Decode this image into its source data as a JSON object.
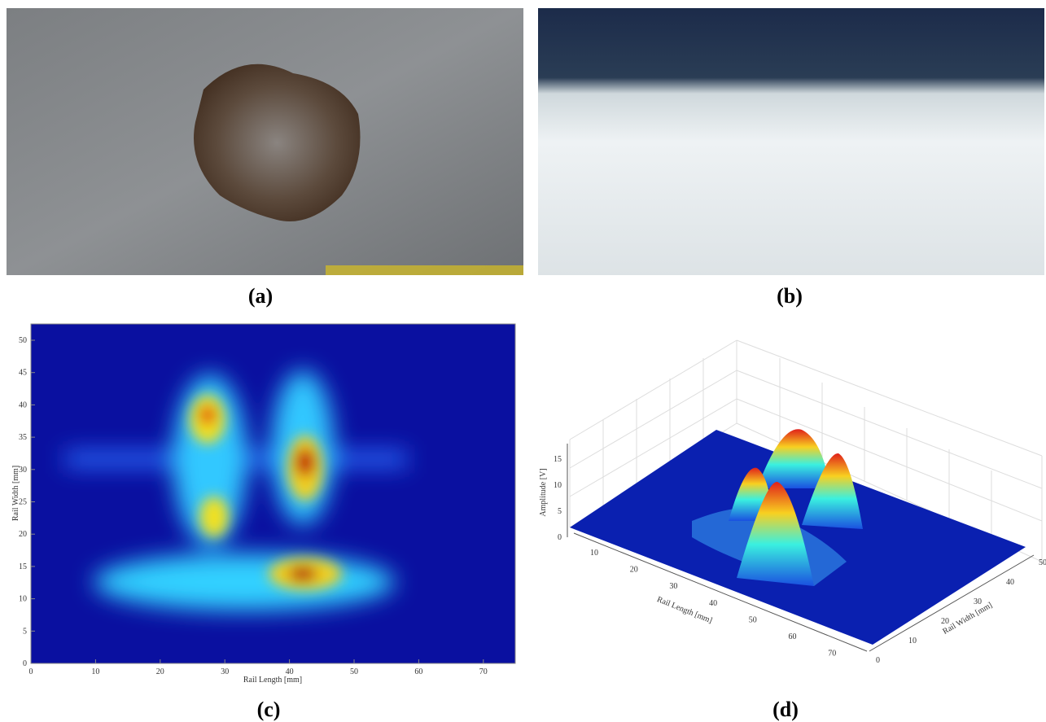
{
  "panels": [
    {
      "label": "(a)"
    },
    {
      "label": "(b)"
    },
    {
      "label": "(c)",
      "x_label": "Rail Length [mm]",
      "y_label": "Rail Width [mm]",
      "xticks": [
        0,
        10,
        20,
        30,
        40,
        50,
        60,
        70
      ],
      "yticks": [
        0,
        5,
        10,
        15,
        20,
        25,
        30,
        35,
        40,
        45,
        50
      ]
    },
    {
      "label": "(d)",
      "x_label": "Rail Length [mm]",
      "y_label": "Rail Width [mm]",
      "z_label": "Amplitude [V]",
      "xticks": [
        10,
        20,
        30,
        40,
        50,
        60,
        70
      ],
      "yticks": [
        0,
        10,
        20,
        30,
        40,
        50
      ],
      "zticks": [
        0,
        5,
        10,
        15
      ]
    }
  ]
}
